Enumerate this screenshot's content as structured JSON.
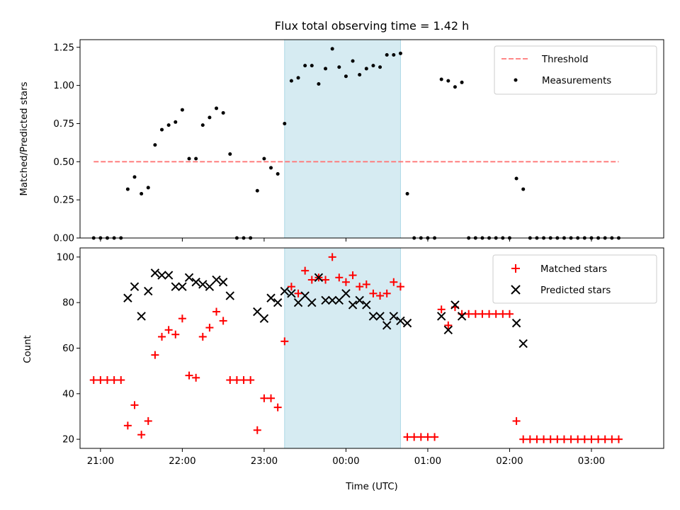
{
  "chart_data": [
    {
      "type": "scatter",
      "title": "Flux total observing time = 1.42 h",
      "ylabel": "Matched/Predicted stars",
      "xlabel": "",
      "xlim": [
        "20:45",
        "03:53"
      ],
      "ylim": [
        0,
        1.3
      ],
      "yticks": [
        "0.00",
        "0.25",
        "0.50",
        "0.75",
        "1.00",
        "1.25"
      ],
      "shaded_region": [
        "23:15",
        "00:40"
      ],
      "legend_position": "upper-right",
      "legend": [
        "Threshold",
        "Measurements"
      ],
      "threshold": {
        "name": "Threshold",
        "y": 0.5,
        "x_start": "20:55",
        "x_end": "03:20",
        "color": "#ff7777"
      },
      "measurements": {
        "name": "Measurements",
        "color": "#000000",
        "points": [
          [
            "20:55",
            0
          ],
          [
            "21:00",
            0
          ],
          [
            "21:05",
            0
          ],
          [
            "21:10",
            0
          ],
          [
            "21:15",
            0
          ],
          [
            "21:20",
            0.32
          ],
          [
            "21:25",
            0.4
          ],
          [
            "21:30",
            0.29
          ],
          [
            "21:35",
            0.33
          ],
          [
            "21:40",
            0.61
          ],
          [
            "21:45",
            0.71
          ],
          [
            "21:50",
            0.74
          ],
          [
            "21:55",
            0.76
          ],
          [
            "22:00",
            0.84
          ],
          [
            "22:05",
            0.52
          ],
          [
            "22:10",
            0.52
          ],
          [
            "22:15",
            0.74
          ],
          [
            "22:20",
            0.79
          ],
          [
            "22:25",
            0.85
          ],
          [
            "22:30",
            0.82
          ],
          [
            "22:35",
            0.55
          ],
          [
            "22:40",
            0
          ],
          [
            "22:45",
            0
          ],
          [
            "22:50",
            0
          ],
          [
            "22:55",
            0.31
          ],
          [
            "23:00",
            0.52
          ],
          [
            "23:05",
            0.46
          ],
          [
            "23:10",
            0.42
          ],
          [
            "23:15",
            0.75
          ],
          [
            "23:20",
            1.03
          ],
          [
            "23:25",
            1.05
          ],
          [
            "23:30",
            1.13
          ],
          [
            "23:35",
            1.13
          ],
          [
            "23:40",
            1.01
          ],
          [
            "23:45",
            1.11
          ],
          [
            "23:50",
            1.24
          ],
          [
            "23:55",
            1.12
          ],
          [
            "00:00",
            1.06
          ],
          [
            "00:05",
            1.16
          ],
          [
            "00:10",
            1.07
          ],
          [
            "00:15",
            1.11
          ],
          [
            "00:20",
            1.13
          ],
          [
            "00:25",
            1.12
          ],
          [
            "00:30",
            1.2
          ],
          [
            "00:35",
            1.2
          ],
          [
            "00:40",
            1.21
          ],
          [
            "00:45",
            0.29
          ],
          [
            "00:50",
            0
          ],
          [
            "00:55",
            0
          ],
          [
            "01:00",
            0
          ],
          [
            "01:05",
            0
          ],
          [
            "01:10",
            1.04
          ],
          [
            "01:15",
            1.03
          ],
          [
            "01:20",
            0.99
          ],
          [
            "01:25",
            1.02
          ],
          [
            "01:30",
            0
          ],
          [
            "01:35",
            0
          ],
          [
            "01:40",
            0
          ],
          [
            "01:45",
            0
          ],
          [
            "01:50",
            0
          ],
          [
            "01:55",
            0
          ],
          [
            "02:00",
            0
          ],
          [
            "02:05",
            0.39
          ],
          [
            "02:10",
            0.32
          ],
          [
            "02:15",
            0
          ],
          [
            "02:20",
            0
          ],
          [
            "02:25",
            0
          ],
          [
            "02:30",
            0
          ],
          [
            "02:35",
            0
          ],
          [
            "02:40",
            0
          ],
          [
            "02:45",
            0
          ],
          [
            "02:50",
            0
          ],
          [
            "02:55",
            0
          ],
          [
            "03:00",
            0
          ],
          [
            "03:05",
            0
          ],
          [
            "03:10",
            0
          ],
          [
            "03:15",
            0
          ],
          [
            "03:20",
            0
          ]
        ]
      }
    },
    {
      "type": "scatter",
      "title": "",
      "xlabel": "Time (UTC)",
      "ylabel": "Count",
      "xlim": [
        "20:45",
        "03:53"
      ],
      "ylim": [
        16,
        104
      ],
      "xticks": [
        "21:00",
        "22:00",
        "23:00",
        "00:00",
        "01:00",
        "02:00",
        "03:00"
      ],
      "yticks": [
        "20",
        "40",
        "60",
        "80",
        "100"
      ],
      "shaded_region": [
        "23:15",
        "00:40"
      ],
      "legend_position": "upper-right",
      "legend": [
        "Matched stars",
        "Predicted stars"
      ],
      "series": [
        {
          "name": "Matched stars",
          "marker": "plus",
          "color": "#ff0000",
          "points": [
            [
              "20:55",
              46
            ],
            [
              "21:00",
              46
            ],
            [
              "21:05",
              46
            ],
            [
              "21:10",
              46
            ],
            [
              "21:15",
              46
            ],
            [
              "21:20",
              26
            ],
            [
              "21:25",
              35
            ],
            [
              "21:30",
              22
            ],
            [
              "21:35",
              28
            ],
            [
              "21:40",
              57
            ],
            [
              "21:45",
              65
            ],
            [
              "21:50",
              68
            ],
            [
              "21:55",
              66
            ],
            [
              "22:00",
              73
            ],
            [
              "22:05",
              48
            ],
            [
              "22:10",
              47
            ],
            [
              "22:15",
              65
            ],
            [
              "22:20",
              69
            ],
            [
              "22:25",
              76
            ],
            [
              "22:30",
              72
            ],
            [
              "22:35",
              46
            ],
            [
              "22:40",
              46
            ],
            [
              "22:45",
              46
            ],
            [
              "22:50",
              46
            ],
            [
              "22:55",
              24
            ],
            [
              "23:00",
              38
            ],
            [
              "23:05",
              38
            ],
            [
              "23:10",
              34
            ],
            [
              "23:15",
              63
            ],
            [
              "23:20",
              87
            ],
            [
              "23:25",
              84
            ],
            [
              "23:30",
              94
            ],
            [
              "23:35",
              90
            ],
            [
              "23:40",
              91
            ],
            [
              "23:45",
              90
            ],
            [
              "23:50",
              100
            ],
            [
              "23:55",
              91
            ],
            [
              "00:00",
              89
            ],
            [
              "00:05",
              92
            ],
            [
              "00:10",
              87
            ],
            [
              "00:15",
              88
            ],
            [
              "00:20",
              84
            ],
            [
              "00:25",
              83
            ],
            [
              "00:30",
              84
            ],
            [
              "00:35",
              89
            ],
            [
              "00:40",
              87
            ],
            [
              "00:45",
              21
            ],
            [
              "00:50",
              21
            ],
            [
              "00:55",
              21
            ],
            [
              "01:00",
              21
            ],
            [
              "01:05",
              21
            ],
            [
              "01:10",
              77
            ],
            [
              "01:15",
              70
            ],
            [
              "01:20",
              78
            ],
            [
              "01:25",
              75
            ],
            [
              "01:30",
              75
            ],
            [
              "01:35",
              75
            ],
            [
              "01:40",
              75
            ],
            [
              "01:45",
              75
            ],
            [
              "01:50",
              75
            ],
            [
              "01:55",
              75
            ],
            [
              "02:00",
              75
            ],
            [
              "02:05",
              28
            ],
            [
              "02:10",
              20
            ],
            [
              "02:15",
              20
            ],
            [
              "02:20",
              20
            ],
            [
              "02:25",
              20
            ],
            [
              "02:30",
              20
            ],
            [
              "02:35",
              20
            ],
            [
              "02:40",
              20
            ],
            [
              "02:45",
              20
            ],
            [
              "02:50",
              20
            ],
            [
              "02:55",
              20
            ],
            [
              "03:00",
              20
            ],
            [
              "03:05",
              20
            ],
            [
              "03:10",
              20
            ],
            [
              "03:15",
              20
            ],
            [
              "03:20",
              20
            ]
          ]
        },
        {
          "name": "Predicted stars",
          "marker": "x",
          "color": "#000000",
          "points": [
            [
              "21:20",
              82
            ],
            [
              "21:25",
              87
            ],
            [
              "21:30",
              74
            ],
            [
              "21:35",
              85
            ],
            [
              "21:40",
              93
            ],
            [
              "21:45",
              92
            ],
            [
              "21:50",
              92
            ],
            [
              "21:55",
              87
            ],
            [
              "22:00",
              87
            ],
            [
              "22:05",
              91
            ],
            [
              "22:10",
              89
            ],
            [
              "22:15",
              88
            ],
            [
              "22:20",
              87
            ],
            [
              "22:25",
              90
            ],
            [
              "22:30",
              89
            ],
            [
              "22:35",
              83
            ],
            [
              "22:55",
              76
            ],
            [
              "23:00",
              73
            ],
            [
              "23:05",
              82
            ],
            [
              "23:10",
              80
            ],
            [
              "23:15",
              85
            ],
            [
              "23:20",
              84
            ],
            [
              "23:25",
              80
            ],
            [
              "23:30",
              83
            ],
            [
              "23:35",
              80
            ],
            [
              "23:40",
              91
            ],
            [
              "23:45",
              81
            ],
            [
              "23:50",
              81
            ],
            [
              "23:55",
              81
            ],
            [
              "00:00",
              84
            ],
            [
              "00:05",
              79
            ],
            [
              "00:10",
              81
            ],
            [
              "00:15",
              79
            ],
            [
              "00:20",
              74
            ],
            [
              "00:25",
              74
            ],
            [
              "00:30",
              70
            ],
            [
              "00:35",
              74
            ],
            [
              "00:40",
              72
            ],
            [
              "00:45",
              71
            ],
            [
              "01:10",
              74
            ],
            [
              "01:15",
              68
            ],
            [
              "01:20",
              79
            ],
            [
              "01:25",
              74
            ],
            [
              "02:05",
              71
            ],
            [
              "02:10",
              62
            ]
          ]
        }
      ]
    }
  ]
}
